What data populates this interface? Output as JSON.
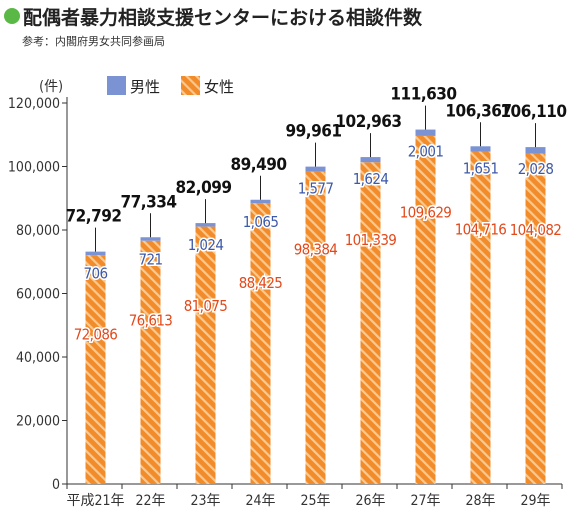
{
  "title": "配偶者暴力相談支援センターにおける相談件数",
  "source": "参考：内閣府男女共同参画局",
  "colors": {
    "male": "#7b93d2",
    "female": "#f28b2a",
    "female_stripe": "#fbc98f",
    "female_label": "#e24a1c",
    "male_label": "#3d5aa9",
    "total_label": "#111111",
    "title_dot": "#5ab946"
  },
  "chart_data": {
    "type": "bar",
    "stacked": true,
    "unit_label": "(件)",
    "categories": [
      "平成21年",
      "22年",
      "23年",
      "24年",
      "25年",
      "26年",
      "27年",
      "28年",
      "29年"
    ],
    "series": [
      {
        "name": "女性",
        "values": [
          72086,
          76613,
          81075,
          88425,
          98384,
          101339,
          109629,
          104716,
          104082
        ]
      },
      {
        "name": "男性",
        "values": [
          706,
          721,
          1024,
          1065,
          1577,
          1624,
          2001,
          1651,
          2028
        ]
      }
    ],
    "totals": [
      72792,
      77334,
      82099,
      89490,
      99961,
      102963,
      111630,
      106367,
      106110
    ],
    "female_labels": [
      "72,086",
      "76,613",
      "81,075",
      "88,425",
      "98,384",
      "101,339",
      "109,629",
      "104,716",
      "104,082"
    ],
    "male_labels": [
      "706",
      "721",
      "1,024",
      "1,065",
      "1,577",
      "1,624",
      "2,001",
      "1,651",
      "2,028"
    ],
    "total_labels": [
      "72,792",
      "77,334",
      "82,099",
      "89,490",
      "99,961",
      "102,963",
      "111,630",
      "106,367",
      "106,110"
    ],
    "y_ticks": [
      0,
      20000,
      40000,
      60000,
      80000,
      100000,
      120000
    ],
    "y_tick_labels": [
      "0",
      "20,000",
      "40,000",
      "60,000",
      "80,000",
      "100,000",
      "120,000"
    ],
    "ylim": [
      0,
      120000
    ],
    "legend": [
      {
        "name": "男性",
        "key": "male"
      },
      {
        "name": "女性",
        "key": "female"
      }
    ],
    "legend_position": "top-left"
  }
}
